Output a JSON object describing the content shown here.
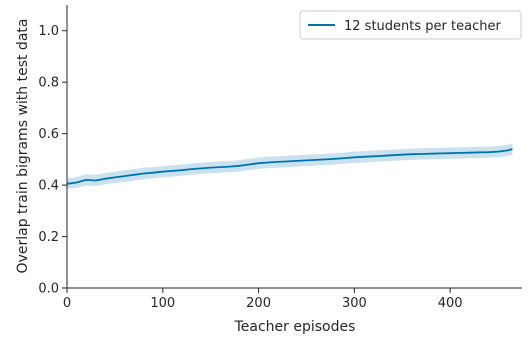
{
  "chart_data": {
    "type": "line",
    "title": "",
    "xlabel": "Teacher episodes",
    "ylabel": "Overlap train bigrams with test data",
    "xlim": [
      0,
      475
    ],
    "ylim": [
      0.0,
      1.1
    ],
    "xticks": [
      0,
      100,
      200,
      300,
      400
    ],
    "yticks": [
      0.0,
      0.2,
      0.4,
      0.6,
      0.8,
      1.0
    ],
    "xtick_labels": [
      "0",
      "100",
      "200",
      "300",
      "400"
    ],
    "ytick_labels": [
      "0.0",
      "0.2",
      "0.4",
      "0.6",
      "0.8",
      "1.0"
    ],
    "grid": false,
    "legend_position": "top-right",
    "series": [
      {
        "name": "12 students per teacher",
        "color": "#0072b2",
        "band_color": "#9ecae1",
        "x": [
          0,
          10,
          20,
          30,
          40,
          50,
          60,
          70,
          80,
          90,
          100,
          110,
          120,
          130,
          140,
          150,
          160,
          170,
          180,
          190,
          200,
          210,
          220,
          230,
          240,
          250,
          260,
          270,
          280,
          290,
          300,
          310,
          320,
          330,
          340,
          350,
          360,
          370,
          380,
          390,
          400,
          410,
          420,
          430,
          440,
          450,
          460,
          465
        ],
        "values": [
          0.405,
          0.41,
          0.42,
          0.418,
          0.425,
          0.43,
          0.435,
          0.44,
          0.445,
          0.448,
          0.452,
          0.455,
          0.458,
          0.462,
          0.465,
          0.468,
          0.47,
          0.472,
          0.475,
          0.48,
          0.485,
          0.488,
          0.49,
          0.492,
          0.494,
          0.496,
          0.498,
          0.5,
          0.502,
          0.505,
          0.508,
          0.51,
          0.512,
          0.514,
          0.516,
          0.518,
          0.52,
          0.521,
          0.522,
          0.523,
          0.524,
          0.525,
          0.526,
          0.527,
          0.528,
          0.53,
          0.535,
          0.54
        ],
        "lower": [
          0.385,
          0.39,
          0.398,
          0.397,
          0.403,
          0.408,
          0.412,
          0.418,
          0.422,
          0.426,
          0.43,
          0.433,
          0.436,
          0.44,
          0.443,
          0.446,
          0.448,
          0.45,
          0.453,
          0.458,
          0.463,
          0.466,
          0.468,
          0.47,
          0.472,
          0.474,
          0.476,
          0.478,
          0.48,
          0.483,
          0.486,
          0.488,
          0.49,
          0.492,
          0.494,
          0.496,
          0.498,
          0.499,
          0.5,
          0.501,
          0.502,
          0.503,
          0.504,
          0.505,
          0.506,
          0.508,
          0.513,
          0.518
        ],
        "upper": [
          0.425,
          0.432,
          0.442,
          0.44,
          0.447,
          0.452,
          0.458,
          0.462,
          0.468,
          0.47,
          0.474,
          0.477,
          0.48,
          0.484,
          0.487,
          0.49,
          0.492,
          0.494,
          0.497,
          0.502,
          0.507,
          0.51,
          0.512,
          0.514,
          0.516,
          0.518,
          0.52,
          0.522,
          0.524,
          0.527,
          0.53,
          0.532,
          0.534,
          0.536,
          0.538,
          0.54,
          0.542,
          0.543,
          0.544,
          0.545,
          0.546,
          0.547,
          0.548,
          0.549,
          0.55,
          0.552,
          0.557,
          0.562
        ]
      }
    ]
  }
}
